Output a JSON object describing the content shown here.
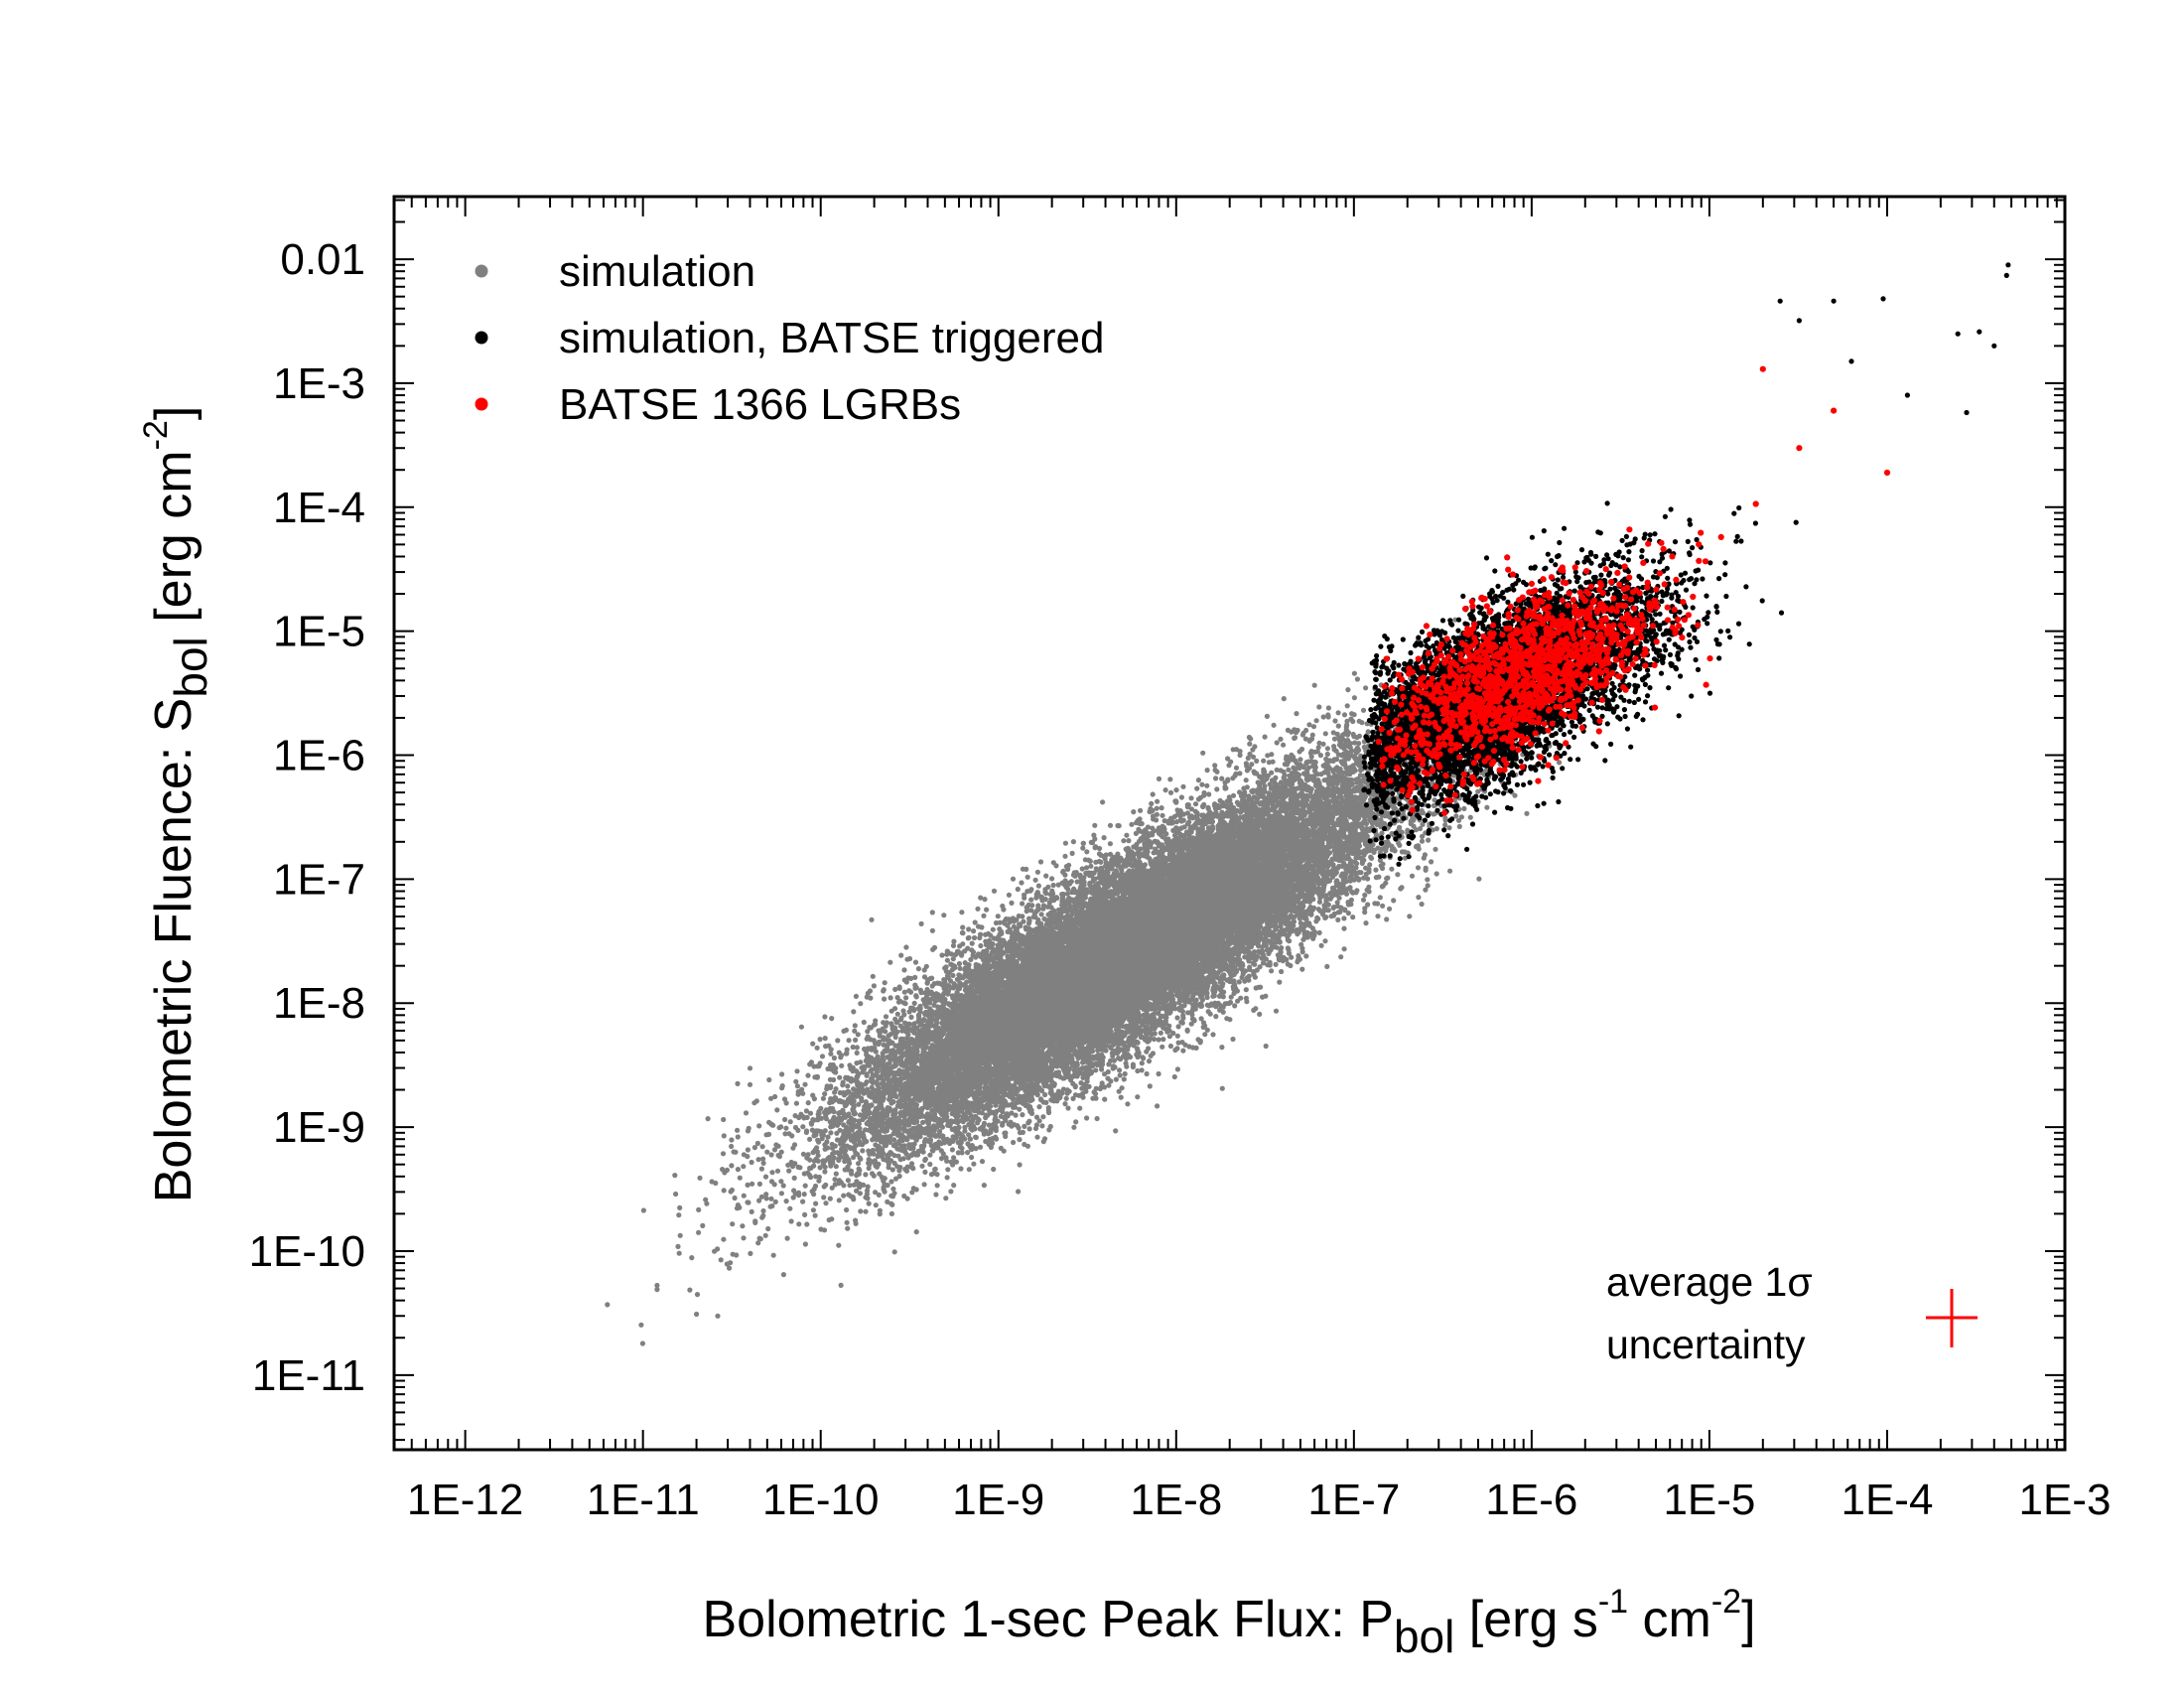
{
  "chart_data": {
    "type": "scatter",
    "xlabel": {
      "text": "Bolometric 1-sec Peak Flux: P",
      "subscript": "bol",
      "unit_open": " [erg s",
      "sup1": "-1",
      "unit_mid": " cm",
      "sup2": "-2",
      "unit_close": "]"
    },
    "ylabel": {
      "text": "Bolometric Fluence: S",
      "subscript": "bol",
      "unit_open": " [erg cm",
      "sup": "-2",
      "unit_close": "]"
    },
    "x_scale": "log",
    "y_scale": "log",
    "xlim": [
      3.98e-13,
      0.001
    ],
    "ylim": [
      2.5e-12,
      0.032
    ],
    "x_ticks": [
      1e-12,
      1e-11,
      1e-10,
      1e-09,
      1e-08,
      1e-07,
      1e-06,
      1e-05,
      0.0001,
      0.001
    ],
    "x_tick_labels": [
      "1E-12",
      "1E-11",
      "1E-10",
      "1E-9",
      "1E-8",
      "1E-7",
      "1E-6",
      "1E-5",
      "1E-4",
      "1E-3"
    ],
    "y_ticks": [
      1e-11,
      1e-10,
      1e-09,
      1e-08,
      1e-07,
      1e-06,
      1e-05,
      0.0001,
      0.001,
      0.01
    ],
    "y_tick_labels": [
      "1E-11",
      "1E-10",
      "1E-9",
      "1E-8",
      "1E-7",
      "1E-6",
      "1E-5",
      "1E-4",
      "1E-3",
      "0.01"
    ],
    "grid": false,
    "legend_position": "top-left",
    "series": [
      {
        "name": "simulation",
        "color": "#808080",
        "count": 26000,
        "cloud": {
          "center_log_x": -8.3,
          "center_log_y": -7.6,
          "sd_along": 1.0,
          "sd_perp": 0.27,
          "log_slope": 1.0
        },
        "outlier_points": [
          [
            6.3e-12,
            3.7e-11
          ],
          [
            1.2e-11,
            4.9e-11
          ],
          [
            2e-11,
            3.1e-11
          ],
          [
            4e-11,
            2.2e-09
          ],
          [
            3.8e-11,
            1.3e-09
          ],
          [
            1.3e-10,
            5.3e-11
          ],
          [
            6.3e-10,
            3e-08
          ],
          [
            3.2e-08,
            4.5e-09
          ],
          [
            2e-08,
            3.3e-07
          ],
          [
            1.6e-11,
            9.6e-11
          ],
          [
            5e-11,
            6.3e-10
          ]
        ]
      },
      {
        "name": "simulation, BATSE triggered",
        "color": "#000000",
        "count": 6500,
        "cloud": {
          "center_log_x": -6.2,
          "center_log_y": -5.5,
          "sd_along": 0.58,
          "sd_perp": 0.25,
          "log_slope": 1.0,
          "min_log_x": -6.95
        },
        "outlier_points": [
          [
            0.00048,
            0.009
          ],
          [
            0.00047,
            0.0074
          ],
          [
            0.00033,
            0.0026
          ],
          [
            0.0004,
            0.002
          ],
          [
            0.00025,
            0.0025
          ],
          [
            9.5e-05,
            0.0048
          ],
          [
            5e-05,
            0.0046
          ],
          [
            2.5e-05,
            0.0046
          ],
          [
            3.2e-05,
            0.0032
          ],
          [
            6.3e-05,
            0.0015
          ],
          [
            0.00028,
            0.00058
          ],
          [
            0.00013,
            0.0008
          ]
        ]
      },
      {
        "name": "BATSE 1366 LGRBs",
        "color": "#ff0000",
        "count": 1366,
        "cloud": {
          "center_log_x": -6.05,
          "center_log_y": -5.35,
          "sd_along": 0.5,
          "sd_perp": 0.22,
          "log_slope": 1.0,
          "min_log_x": -6.9
        },
        "outlier_points": [
          [
            0.0001,
            0.00019
          ],
          [
            5e-05,
            0.0006
          ],
          [
            2e-05,
            0.0013
          ],
          [
            3.2e-05,
            0.0003
          ]
        ]
      }
    ],
    "annotation": {
      "line1": "average 1σ",
      "line2": "uncertainty",
      "color": "#ff0000"
    }
  }
}
